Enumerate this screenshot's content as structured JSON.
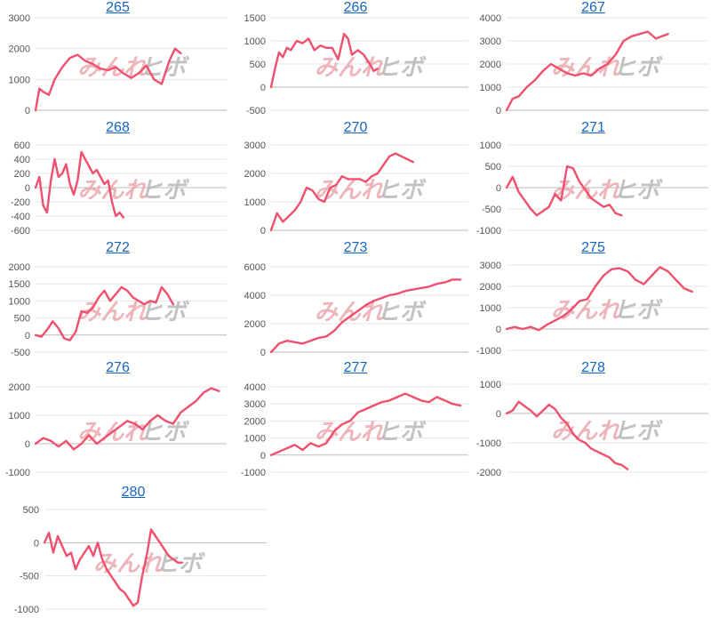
{
  "colors": {
    "line": "#f0506e",
    "title": "#1565c0",
    "grid": "#e6e6e6",
    "axis": "#bbbbbb",
    "watermark_main": "#eba9ae",
    "watermark_sub": "#b8b8b8"
  },
  "watermark": {
    "main": "みんれ",
    "sub": "ヒボ"
  },
  "chart_data": [
    {
      "type": "line",
      "title": "265",
      "yticks": [
        0,
        1000,
        2000,
        3000
      ],
      "ylim": [
        0,
        3000
      ],
      "x": [
        0,
        2,
        4,
        7,
        10,
        14,
        18,
        22,
        26,
        30,
        34,
        38,
        42,
        46,
        50,
        54,
        58,
        62,
        66,
        70,
        73,
        76
      ],
      "values": [
        0,
        700,
        600,
        500,
        1000,
        1400,
        1700,
        1800,
        1600,
        1500,
        1350,
        1300,
        1400,
        1200,
        1050,
        1200,
        1450,
        1000,
        850,
        1600,
        2000,
        1850
      ],
      "xlim": [
        0,
        100
      ]
    },
    {
      "type": "line",
      "title": "266",
      "yticks": [
        -500,
        0,
        500,
        1000,
        1500
      ],
      "ylim": [
        -500,
        1500
      ],
      "x": [
        0,
        2,
        4,
        6,
        8,
        10,
        13,
        16,
        19,
        22,
        25,
        28,
        31,
        34,
        37,
        39,
        41,
        44,
        47,
        50,
        52,
        54
      ],
      "values": [
        0,
        400,
        750,
        650,
        850,
        800,
        1000,
        950,
        1050,
        800,
        900,
        850,
        850,
        600,
        1150,
        1050,
        700,
        800,
        700,
        500,
        350,
        400
      ],
      "xlim": [
        0,
        100
      ]
    },
    {
      "type": "line",
      "title": "267",
      "yticks": [
        0,
        1000,
        2000,
        3000,
        4000
      ],
      "ylim": [
        0,
        4000
      ],
      "x": [
        0,
        3,
        6,
        10,
        14,
        18,
        22,
        26,
        30,
        34,
        38,
        42,
        46,
        50,
        54,
        58,
        62,
        66,
        70,
        74,
        77,
        80
      ],
      "values": [
        0,
        500,
        600,
        1000,
        1300,
        1700,
        2000,
        1800,
        1600,
        1500,
        1600,
        1500,
        1800,
        2000,
        2400,
        3000,
        3200,
        3300,
        3400,
        3100,
        3200,
        3300
      ],
      "xlim": [
        0,
        100
      ]
    },
    {
      "type": "line",
      "title": "268",
      "yticks": [
        -600,
        -400,
        -200,
        0,
        200,
        400,
        600
      ],
      "ylim": [
        -600,
        600
      ],
      "x": [
        0,
        2,
        4,
        6,
        8,
        10,
        12,
        14,
        16,
        18,
        20,
        22,
        24,
        26,
        28,
        30,
        32,
        34,
        36,
        38,
        40,
        42,
        44,
        46
      ],
      "values": [
        0,
        150,
        -250,
        -350,
        100,
        400,
        150,
        200,
        330,
        50,
        -100,
        100,
        500,
        400,
        300,
        200,
        250,
        150,
        50,
        100,
        -200,
        -400,
        -350,
        -420
      ],
      "xlim": [
        0,
        100
      ]
    },
    {
      "type": "line",
      "title": "270",
      "yticks": [
        0,
        1000,
        2000,
        3000
      ],
      "ylim": [
        0,
        3000
      ],
      "x": [
        0,
        3,
        6,
        9,
        12,
        15,
        18,
        21,
        24,
        27,
        30,
        33,
        36,
        39,
        42,
        45,
        48,
        51,
        54,
        57,
        60,
        63,
        66,
        69,
        72
      ],
      "values": [
        0,
        600,
        300,
        500,
        700,
        1000,
        1500,
        1400,
        1100,
        1000,
        1500,
        1600,
        1900,
        1800,
        1800,
        1800,
        1700,
        1900,
        2000,
        2300,
        2600,
        2700,
        2600,
        2500,
        2400
      ],
      "xlim": [
        0,
        100
      ]
    },
    {
      "type": "line",
      "title": "271",
      "yticks": [
        -1000,
        -500,
        0,
        500,
        1000
      ],
      "ylim": [
        -1000,
        1000
      ],
      "x": [
        0,
        3,
        6,
        9,
        12,
        15,
        18,
        21,
        24,
        27,
        30,
        33,
        36,
        39,
        42,
        45,
        48,
        51,
        54,
        57
      ],
      "values": [
        0,
        250,
        -100,
        -300,
        -500,
        -650,
        -550,
        -450,
        -150,
        -300,
        500,
        450,
        150,
        -50,
        -250,
        -350,
        -450,
        -400,
        -600,
        -650
      ],
      "xlim": [
        0,
        100
      ]
    },
    {
      "type": "line",
      "title": "272",
      "yticks": [
        -500,
        0,
        500,
        1000,
        1500,
        2000
      ],
      "ylim": [
        -500,
        2000
      ],
      "x": [
        0,
        3,
        6,
        9,
        12,
        15,
        18,
        21,
        24,
        27,
        30,
        33,
        36,
        39,
        42,
        45,
        48,
        51,
        54,
        57,
        60,
        63,
        66,
        69,
        72
      ],
      "values": [
        0,
        -50,
        150,
        400,
        200,
        -100,
        -150,
        100,
        700,
        650,
        800,
        1100,
        1300,
        1000,
        1200,
        1400,
        1300,
        1100,
        1000,
        900,
        1000,
        950,
        1400,
        1200,
        900
      ],
      "xlim": [
        0,
        100
      ]
    },
    {
      "type": "line",
      "title": "273",
      "yticks": [
        0,
        2000,
        4000,
        6000
      ],
      "ylim": [
        0,
        6000
      ],
      "x": [
        0,
        4,
        8,
        12,
        16,
        20,
        24,
        28,
        32,
        36,
        40,
        44,
        48,
        52,
        56,
        60,
        64,
        68,
        72,
        76,
        80,
        84,
        88,
        92,
        96
      ],
      "values": [
        0,
        600,
        800,
        700,
        600,
        800,
        1000,
        1100,
        1500,
        2100,
        2500,
        2900,
        3300,
        3600,
        3800,
        4000,
        4100,
        4300,
        4400,
        4500,
        4600,
        4800,
        4900,
        5100,
        5100
      ],
      "xlim": [
        0,
        100
      ]
    },
    {
      "type": "line",
      "title": "275",
      "yticks": [
        -1000,
        0,
        1000,
        2000,
        3000
      ],
      "ylim": [
        -1000,
        3000
      ],
      "x": [
        0,
        4,
        8,
        12,
        16,
        20,
        24,
        28,
        32,
        36,
        40,
        44,
        48,
        52,
        56,
        60,
        64,
        68,
        72,
        76,
        80,
        84,
        88,
        92
      ],
      "values": [
        0,
        100,
        0,
        100,
        -50,
        200,
        400,
        600,
        900,
        1300,
        1400,
        2000,
        2500,
        2800,
        2850,
        2700,
        2300,
        2100,
        2500,
        2900,
        2700,
        2300,
        1900,
        1750
      ],
      "xlim": [
        0,
        100
      ]
    },
    {
      "type": "line",
      "title": "276",
      "yticks": [
        -1000,
        0,
        1000,
        2000
      ],
      "ylim": [
        -1000,
        2000
      ],
      "x": [
        0,
        4,
        8,
        12,
        16,
        20,
        24,
        28,
        32,
        36,
        40,
        44,
        48,
        52,
        56,
        60,
        64,
        68,
        72,
        76,
        80,
        84,
        88,
        92,
        96
      ],
      "values": [
        0,
        200,
        100,
        -100,
        100,
        -200,
        0,
        300,
        0,
        200,
        400,
        600,
        800,
        700,
        500,
        800,
        1000,
        800,
        700,
        1100,
        1300,
        1500,
        1800,
        1950,
        1850
      ],
      "xlim": [
        0,
        100
      ]
    },
    {
      "type": "line",
      "title": "277",
      "yticks": [
        -1000,
        0,
        1000,
        2000,
        3000,
        4000
      ],
      "ylim": [
        -1000,
        4000
      ],
      "x": [
        0,
        4,
        8,
        12,
        16,
        20,
        24,
        28,
        32,
        36,
        40,
        44,
        48,
        52,
        56,
        60,
        64,
        68,
        72,
        76,
        80,
        84,
        88,
        92,
        96
      ],
      "values": [
        0,
        200,
        400,
        600,
        300,
        700,
        500,
        700,
        1400,
        1800,
        2000,
        2500,
        2700,
        2900,
        3100,
        3200,
        3400,
        3600,
        3400,
        3200,
        3100,
        3400,
        3200,
        3000,
        2900
      ],
      "xlim": [
        0,
        100
      ]
    },
    {
      "type": "line",
      "title": "278",
      "yticks": [
        -2000,
        -1000,
        0,
        1000
      ],
      "ylim": [
        -2000,
        1000
      ],
      "x": [
        0,
        3,
        6,
        9,
        12,
        15,
        18,
        21,
        24,
        27,
        30,
        33,
        36,
        39,
        42,
        45,
        48,
        51,
        54,
        57,
        60
      ],
      "values": [
        0,
        100,
        400,
        250,
        100,
        -100,
        100,
        300,
        150,
        -150,
        -350,
        -700,
        -900,
        -1000,
        -1200,
        -1300,
        -1400,
        -1500,
        -1700,
        -1750,
        -1900
      ],
      "xlim": [
        0,
        100
      ]
    },
    {
      "type": "line",
      "title": "280",
      "yticks": [
        -1000,
        -500,
        0,
        500
      ],
      "ylim": [
        -1000,
        500
      ],
      "x": [
        0,
        2,
        4,
        6,
        8,
        10,
        12,
        14,
        16,
        18,
        20,
        22,
        24,
        26,
        28,
        30,
        32,
        34,
        36,
        38,
        40,
        42,
        44,
        46,
        48,
        50,
        52,
        54,
        56,
        58,
        60,
        62
      ],
      "values": [
        0,
        150,
        -150,
        100,
        -50,
        -200,
        -150,
        -400,
        -250,
        -150,
        -50,
        -200,
        0,
        -250,
        -400,
        -500,
        -600,
        -700,
        -750,
        -850,
        -950,
        -900,
        -500,
        -200,
        200,
        100,
        0,
        -100,
        -200,
        -250,
        -300,
        -300
      ],
      "xlim": [
        0,
        100
      ]
    }
  ]
}
